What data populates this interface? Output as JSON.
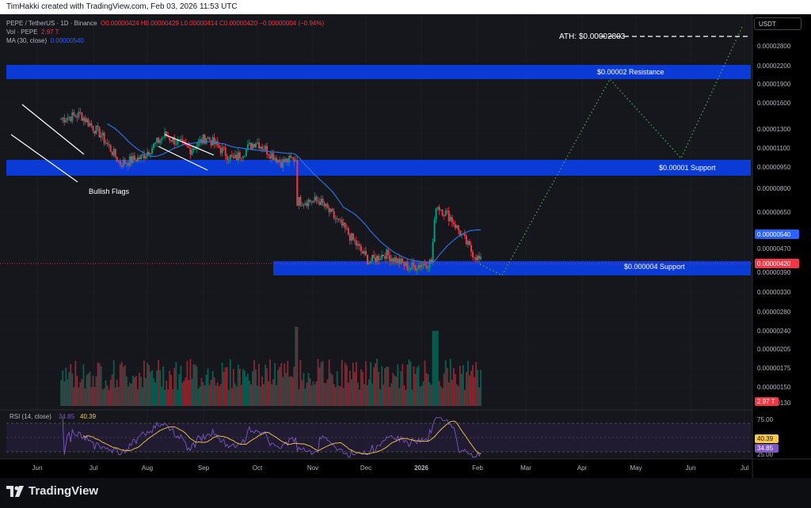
{
  "header": {
    "credit": "TimHakki created with TradingView.com, Feb 03, 2026 11:53 UTC"
  },
  "legend": {
    "symbol": "PEPE / TetherUS · 1D · Binance",
    "ohlc_o": "O0.00000424",
    "ohlc_h": "H0.00000429",
    "ohlc_l": "L0.00000414",
    "ohlc_c": "C0.00000420",
    "change": "−0.00000004 (−0.94%)",
    "vol_label": "Vol · PEPE",
    "vol_value": "2.97 T",
    "ma_label": "MA (30, close)",
    "ma_value": "0.00000540"
  },
  "currency_button": "USDT",
  "price_axis": {
    "ticks": [
      "0.00002800",
      "0.00002200",
      "0.00001900",
      "0.00001600",
      "0.00001300",
      "0.00001100",
      "0.00000950",
      "0.00000800",
      "0.00000650",
      "0.00000470",
      "0.00000390",
      "0.00000330",
      "0.00000280",
      "0.00000240",
      "0.00000205",
      "0.00000175",
      "0.00000150",
      "0.00000130"
    ],
    "ma_badge": "0.00000540",
    "price_badge": "0.00000420",
    "vol_badge": "2.97 T"
  },
  "rsi": {
    "label": "RSI (14, close)",
    "value_rsi": "34.85",
    "value_ma": "40.39",
    "axis_ticks": [
      "75.00",
      "25.00"
    ],
    "badge_ma": "40.39",
    "badge_rsi": "34.85"
  },
  "time_axis": [
    "Jun",
    "Jul",
    "Aug",
    "Sep",
    "Oct",
    "Nov",
    "Dec",
    "2026",
    "Feb",
    "Mar",
    "Apr",
    "May",
    "Jun",
    "Jul"
  ],
  "annotations": {
    "ath": "ATH: $0.00002803",
    "resistance": "$0.00002 Resistance",
    "support_mid": "$0.00001 Support",
    "support_low": "$0.000004 Support",
    "flags": "Bullish Flags"
  },
  "brand": "TradingView",
  "colors": {
    "up": "#089981",
    "down": "#f23645",
    "zone": "#0b3bd6",
    "ma": "#2962ff",
    "rsi": "#7e57c2",
    "rsi_ma": "#f7c948",
    "projection": "#4caf50"
  },
  "chart_data": {
    "type": "candlestick",
    "symbol": "PEPE / TetherUS",
    "interval": "1D",
    "x_range": [
      "2025-05-15",
      "2026-07-15"
    ],
    "y_scale": "log",
    "close_series": [
      {
        "date": "2025-05-16",
        "close": 1.4e-05
      },
      {
        "date": "2025-05-28",
        "close": 1.45e-05
      },
      {
        "date": "2025-06-10",
        "close": 1.22e-05
      },
      {
        "date": "2025-06-22",
        "close": 9.6e-06
      },
      {
        "date": "2025-07-05",
        "close": 1.01e-05
      },
      {
        "date": "2025-07-20",
        "close": 1.22e-05
      },
      {
        "date": "2025-08-05",
        "close": 1.08e-05
      },
      {
        "date": "2025-08-15",
        "close": 1.2e-05
      },
      {
        "date": "2025-09-01",
        "close": 9.9e-06
      },
      {
        "date": "2025-09-15",
        "close": 1.16e-05
      },
      {
        "date": "2025-10-01",
        "close": 9.7e-06
      },
      {
        "date": "2025-10-10",
        "close": 1e-05
      },
      {
        "date": "2025-10-11",
        "close": 7e-06
      },
      {
        "date": "2025-10-25",
        "close": 7e-06
      },
      {
        "date": "2025-11-10",
        "close": 5.5e-06
      },
      {
        "date": "2025-11-25",
        "close": 4.2e-06
      },
      {
        "date": "2025-12-05",
        "close": 4.5e-06
      },
      {
        "date": "2025-12-20",
        "close": 4e-06
      },
      {
        "date": "2026-01-03",
        "close": 4.2e-06
      },
      {
        "date": "2026-01-06",
        "close": 6.8e-06
      },
      {
        "date": "2026-01-15",
        "close": 6.1e-06
      },
      {
        "date": "2026-01-28",
        "close": 4.6e-06
      },
      {
        "date": "2026-02-03",
        "close": 4.2e-06
      }
    ],
    "ma30_last": 5.4e-06,
    "rsi_last": 34.85,
    "rsi_ma_last": 40.39,
    "zones": [
      {
        "name": "$0.00002 Resistance",
        "low": 1.95e-05,
        "high": 2.15e-05
      },
      {
        "name": "$0.00001 Support",
        "low": 8.9e-06,
        "high": 9.8e-06
      },
      {
        "name": "$0.000004 Support",
        "low": 3.9e-06,
        "high": 4.3e-06
      }
    ],
    "ath": 2.803e-05,
    "projection": [
      {
        "date": "2026-02-03",
        "price": 4.2e-06
      },
      {
        "date": "2026-02-15",
        "price": 4e-06
      },
      {
        "date": "2026-04-15",
        "price": 2e-05
      },
      {
        "date": "2026-05-25",
        "price": 1e-05
      },
      {
        "date": "2026-07-01",
        "price": 2.8e-05
      }
    ],
    "volume_last": "2.97 T",
    "rsi_bands": [
      75,
      25
    ]
  }
}
